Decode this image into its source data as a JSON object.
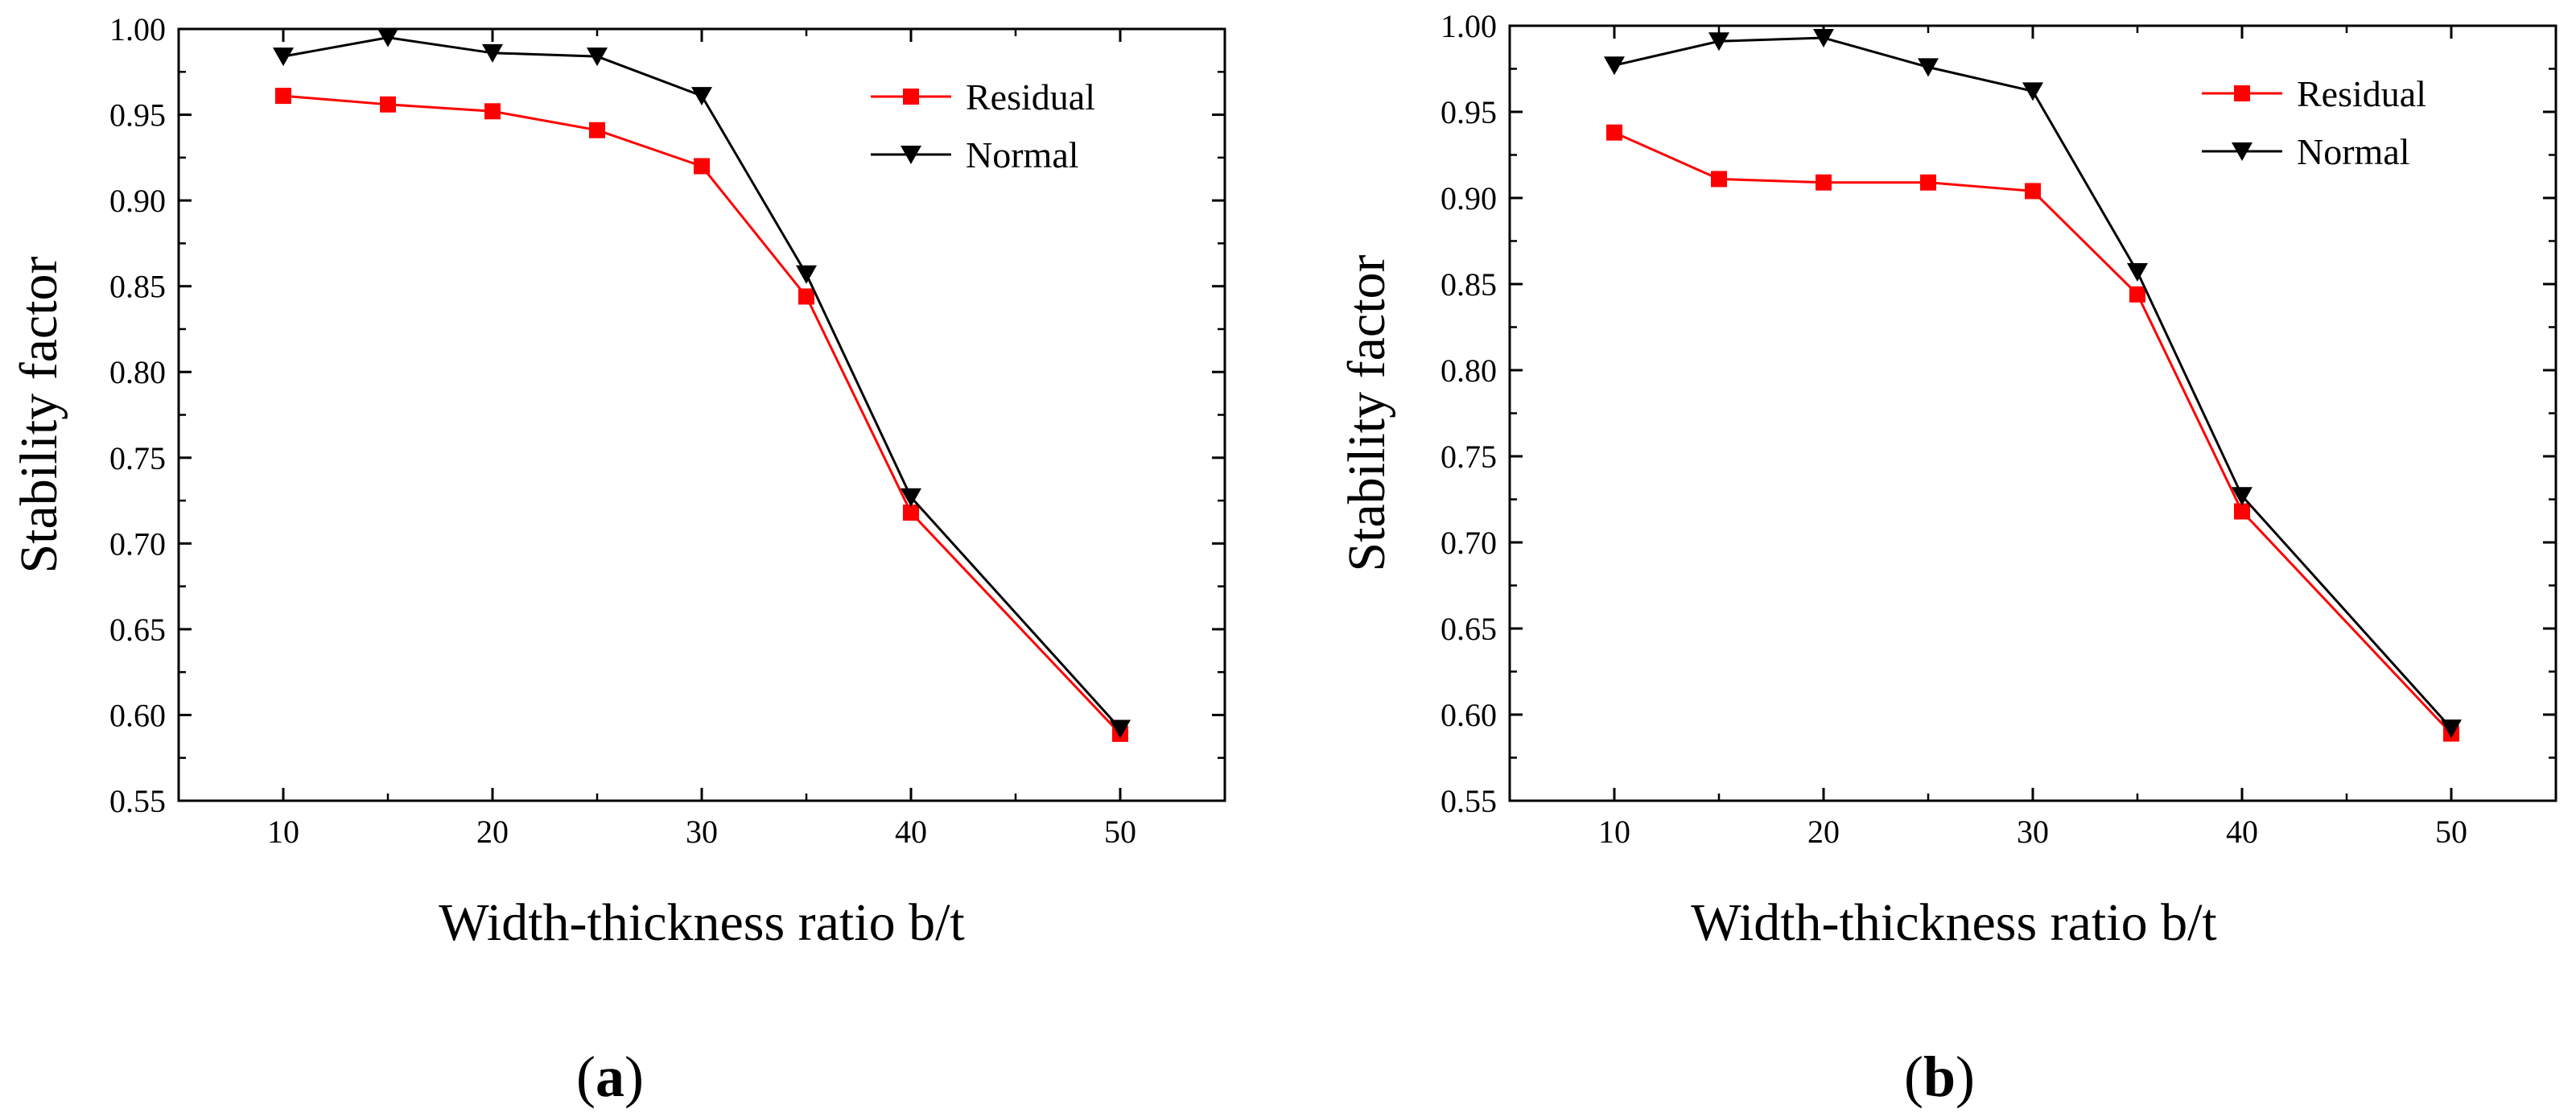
{
  "chart_data": [
    {
      "type": "line",
      "panel_label": "a",
      "xlabel": "Width-thickness ratio b/t",
      "ylabel": "Stability factor",
      "xlim": [
        5,
        55
      ],
      "ylim": [
        0.55,
        1.0
      ],
      "xticks": [
        10,
        20,
        30,
        40,
        50
      ],
      "yticks": [
        "0.55",
        "0.60",
        "0.65",
        "0.70",
        "0.75",
        "0.80",
        "0.85",
        "0.90",
        "0.95",
        "1.00"
      ],
      "legend_position": "top-right",
      "x": [
        10,
        15,
        20,
        25,
        30,
        35,
        40,
        50
      ],
      "series": [
        {
          "name": "Residual",
          "color": "#ff0000",
          "marker": "square",
          "values": [
            0.961,
            0.956,
            0.952,
            0.941,
            0.92,
            0.844,
            0.718,
            0.589
          ]
        },
        {
          "name": "Normal",
          "color": "#000000",
          "marker": "triangle-down",
          "values": [
            0.984,
            0.995,
            0.986,
            0.984,
            0.961,
            0.857,
            0.727,
            0.592
          ]
        }
      ]
    },
    {
      "type": "line",
      "panel_label": "b",
      "xlabel": "Width-thickness ratio b/t",
      "ylabel": "Stability factor",
      "xlim": [
        5,
        55
      ],
      "ylim": [
        0.55,
        1.0
      ],
      "xticks": [
        10,
        20,
        30,
        40,
        50
      ],
      "yticks": [
        "0.55",
        "0.60",
        "0.65",
        "0.70",
        "0.75",
        "0.80",
        "0.85",
        "0.90",
        "0.95",
        "1.00"
      ],
      "legend_position": "top-right",
      "x": [
        10,
        15,
        20,
        25,
        30,
        35,
        40,
        50
      ],
      "series": [
        {
          "name": "Residual",
          "color": "#ff0000",
          "marker": "square",
          "values": [
            0.938,
            0.911,
            0.909,
            0.909,
            0.904,
            0.844,
            0.718,
            0.589
          ]
        },
        {
          "name": "Normal",
          "color": "#000000",
          "marker": "triangle-down",
          "values": [
            0.977,
            0.991,
            0.993,
            0.976,
            0.962,
            0.857,
            0.727,
            0.592
          ]
        }
      ]
    }
  ]
}
